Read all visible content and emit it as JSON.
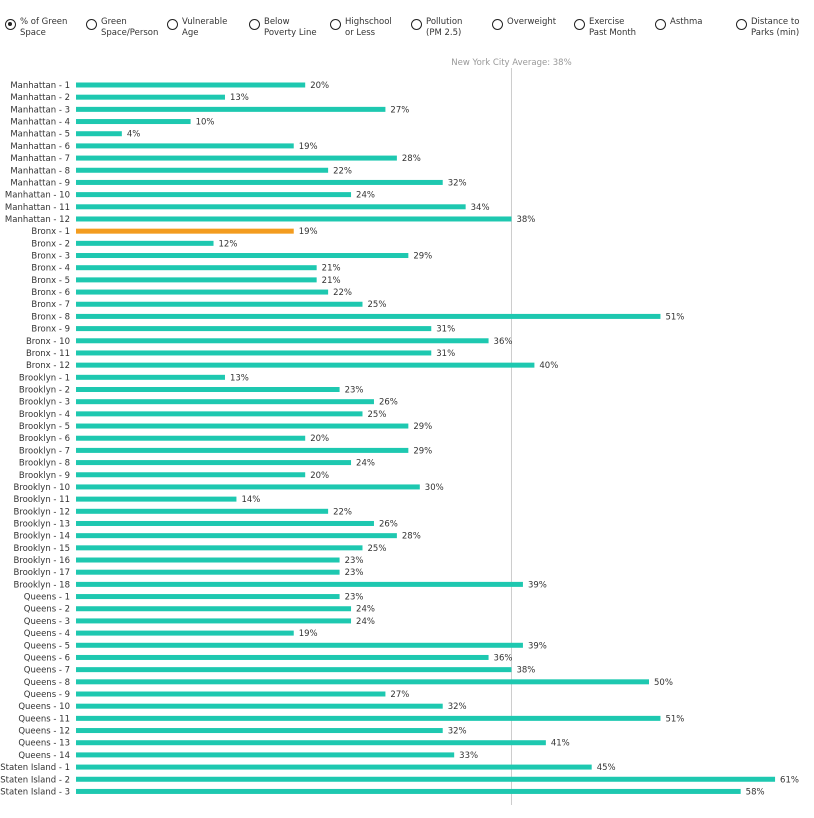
{
  "selector": {
    "selected_index": 0,
    "options": [
      "% of Green\nSpace",
      "Green\nSpace/Person",
      "Vulnerable\nAge",
      "Below\nPoverty Line",
      "Highschool\nor Less",
      "Pollution\n(PM 2.5)",
      "Overweight",
      "Exercise\nPast Month",
      "Asthma",
      "Distance to\nParks (min)"
    ]
  },
  "colors": {
    "bar": "#1ec8b0",
    "highlight": "#f39c1f",
    "reference_line": "#cccccc"
  },
  "chart_data": {
    "type": "bar",
    "orientation": "horizontal",
    "title": "% of Green Space",
    "xlim": [
      0,
      61
    ],
    "highlighted_category": "Bronx - 1",
    "reference_line": {
      "value": 38,
      "label": "New York City Average: 38%"
    },
    "value_suffix": "%",
    "categories": [
      "Manhattan - 1",
      "Manhattan - 2",
      "Manhattan - 3",
      "Manhattan - 4",
      "Manhattan - 5",
      "Manhattan - 6",
      "Manhattan - 7",
      "Manhattan - 8",
      "Manhattan - 9",
      "Manhattan - 10",
      "Manhattan - 11",
      "Manhattan - 12",
      "Bronx - 1",
      "Bronx - 2",
      "Bronx - 3",
      "Bronx - 4",
      "Bronx - 5",
      "Bronx - 6",
      "Bronx - 7",
      "Bronx - 8",
      "Bronx - 9",
      "Bronx - 10",
      "Bronx - 11",
      "Bronx - 12",
      "Brooklyn - 1",
      "Brooklyn - 2",
      "Brooklyn - 3",
      "Brooklyn - 4",
      "Brooklyn - 5",
      "Brooklyn - 6",
      "Brooklyn - 7",
      "Brooklyn - 8",
      "Brooklyn - 9",
      "Brooklyn - 10",
      "Brooklyn - 11",
      "Brooklyn - 12",
      "Brooklyn - 13",
      "Brooklyn - 14",
      "Brooklyn - 15",
      "Brooklyn - 16",
      "Brooklyn - 17",
      "Brooklyn - 18",
      "Queens - 1",
      "Queens - 2",
      "Queens - 3",
      "Queens - 4",
      "Queens - 5",
      "Queens - 6",
      "Queens - 7",
      "Queens - 8",
      "Queens - 9",
      "Queens - 10",
      "Queens - 11",
      "Queens - 12",
      "Queens - 13",
      "Queens - 14",
      "Staten Island - 1",
      "Staten Island - 2",
      "Staten Island - 3"
    ],
    "values": [
      20,
      13,
      27,
      10,
      4,
      19,
      28,
      22,
      32,
      24,
      34,
      38,
      19,
      12,
      29,
      21,
      21,
      22,
      25,
      51,
      31,
      36,
      31,
      40,
      13,
      23,
      26,
      25,
      29,
      20,
      29,
      24,
      20,
      30,
      14,
      22,
      26,
      28,
      25,
      23,
      23,
      39,
      23,
      24,
      24,
      19,
      39,
      36,
      38,
      50,
      27,
      32,
      51,
      32,
      41,
      33,
      45,
      61,
      58
    ]
  }
}
